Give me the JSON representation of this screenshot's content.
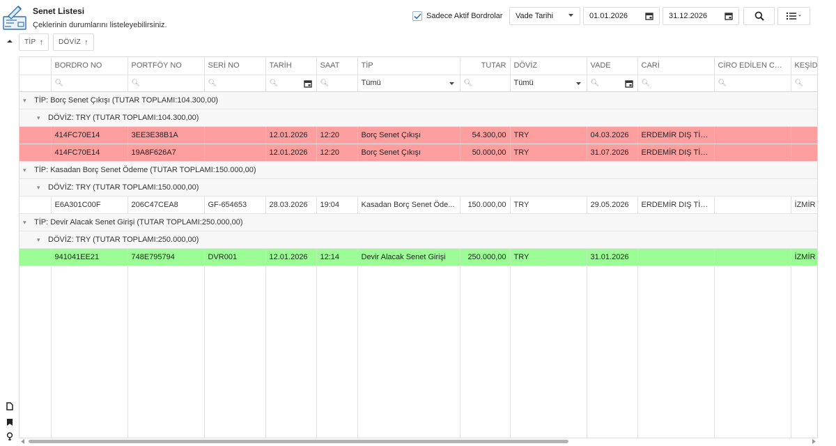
{
  "header": {
    "title": "Senet Listesi",
    "subtitle": "Çeklerinin durumlarını listeleyebilirsiniz.",
    "active_only_label": "Sadece Aktif Bordrolar",
    "active_only_checked": true,
    "date_field": "Vade Tarihi",
    "date_from": "01.01.2026",
    "date_to": "31.12.2026",
    "search_icon": "search-icon",
    "view_icon": "list-icon"
  },
  "grouping": {
    "chips": [
      {
        "label": "TİP",
        "arrow": "↑"
      },
      {
        "label": "DÖVİZ",
        "arrow": "↑"
      }
    ]
  },
  "columns": [
    "BORDRO NO",
    "PORTFÖY NO",
    "SERİ NO",
    "TARİH",
    "SAAT",
    "TİP",
    "TUTAR",
    "DÖVİZ",
    "VADE",
    "CARİ",
    "CİRO EDİLEN CARİ...",
    "KEŞİDE"
  ],
  "filters": {
    "tip_value": "Tümü",
    "doviz_value": "Tümü"
  },
  "groups": [
    {
      "tip_label": "TİP: Borç Senet Çıkışı (TUTAR TOPLAMI:104.300,00)",
      "doviz_label": "DÖVİZ: TRY (TUTAR TOPLAMI:104.300,00)",
      "rows": [
        {
          "bordro": "414FC70E14",
          "portfoy": "3EE3E38B1A",
          "seri": "",
          "tarih": "12.01.2026",
          "saat": "12:20",
          "tip": "Borç Senet Çıkışı",
          "tutar": "54.300,00",
          "doviz": "TRY",
          "vade": "04.03.2026",
          "cari": "ERDEMİR DIŞ TİC...",
          "ciro": "",
          "keside": ""
        },
        {
          "bordro": "414FC70E14",
          "portfoy": "19A8F626A7",
          "seri": "",
          "tarih": "12.01.2026",
          "saat": "12:20",
          "tip": "Borç Senet Çıkışı",
          "tutar": "50.000,00",
          "doviz": "TRY",
          "vade": "31.07.2026",
          "cari": "ERDEMİR DIŞ TİC...",
          "ciro": "",
          "keside": ""
        }
      ]
    },
    {
      "tip_label": "TİP: Kasadan Borç Senet Ödeme (TUTAR TOPLAMI:150.000,00)",
      "doviz_label": "DÖVİZ: TRY (TUTAR TOPLAMI:150.000,00)",
      "rows": [
        {
          "bordro": "E6A301C00F",
          "portfoy": "206C47CEA8",
          "seri": "GF-654653",
          "tarih": "28.03.2026",
          "saat": "19:04",
          "tip": "Kasadan Borç Senet Öde...",
          "tutar": "150.000,00",
          "doviz": "TRY",
          "vade": "29.05.2026",
          "cari": "ERDEMİR DIŞ TİC...",
          "ciro": "",
          "keside": "İZMİR"
        }
      ]
    },
    {
      "tip_label": "TİP: Devir Alacak Senet Girişi (TUTAR TOPLAMI:250.000,00)",
      "doviz_label": "DÖVİZ: TRY (TUTAR TOPLAMI:250.000,00)",
      "rows": [
        {
          "bordro": "941041EE21",
          "portfoy": "748E795794",
          "seri": "DVR001",
          "tarih": "12.01.2026",
          "saat": "12:14",
          "tip": "Devir Alacak Senet Girişi",
          "tutar": "250.000,00",
          "doviz": "TRY",
          "vade": "31.01.2026",
          "cari": "",
          "ciro": "",
          "keside": "İZMİR"
        }
      ]
    }
  ],
  "row_colors": {
    "red": "#ff9e9e",
    "white": "#ffffff",
    "green": "#9cfc96"
  },
  "rail_icons": [
    "document-icon",
    "bookmark-icon",
    "lightbulb-icon"
  ]
}
